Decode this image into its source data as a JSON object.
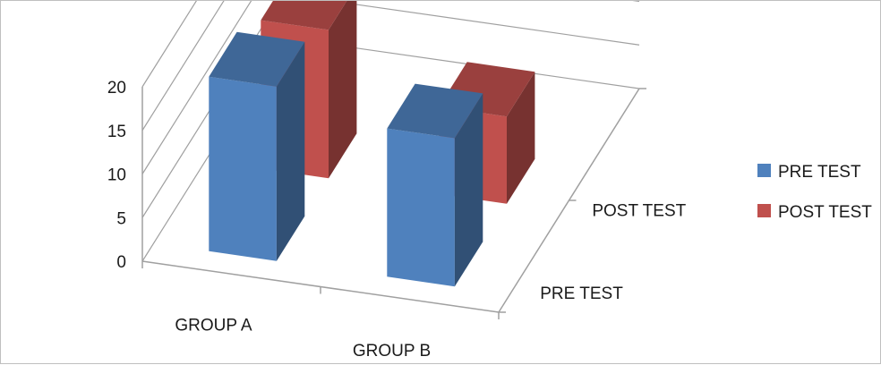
{
  "chart_data": {
    "type": "bar",
    "subtype": "3d-column",
    "categories": [
      "GROUP A",
      "GROUP B"
    ],
    "depth_labels": [
      "PRE TEST",
      "POST TEST"
    ],
    "series": [
      {
        "name": "PRE TEST",
        "values": [
          20,
          17
        ],
        "color": "#4f81bd"
      },
      {
        "name": "POST TEST",
        "values": [
          17,
          10
        ],
        "color": "#c0504d"
      }
    ],
    "ylim": [
      0,
      20
    ],
    "yticks": [
      "0",
      "5",
      "10",
      "15",
      "20"
    ],
    "title": "",
    "xlabel": "",
    "ylabel": "",
    "grid": true,
    "legend": "right"
  }
}
